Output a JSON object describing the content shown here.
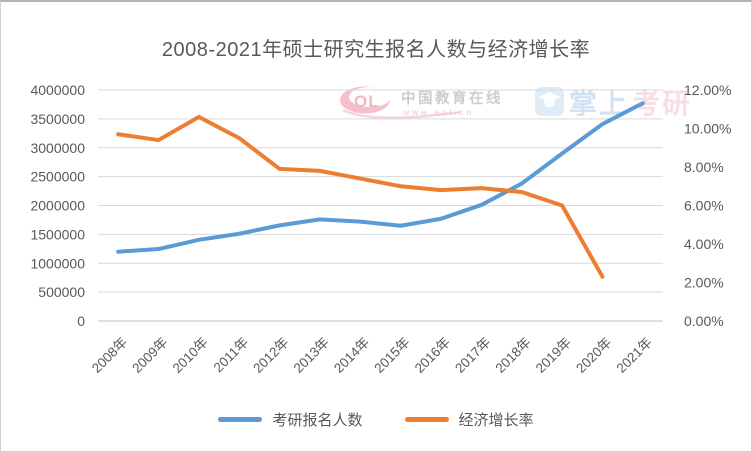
{
  "watermarks": {
    "eol": {
      "logo_text": "OL",
      "site_name": "中国教育在线",
      "site_url": "www.eol.cn"
    },
    "zhangshang": {
      "text_blue": "掌上",
      "text_red": "考研"
    }
  },
  "chart_data": {
    "type": "line",
    "title": "2008-2021年硕士研究生报名人数与经济增长率",
    "categories": [
      "2008年",
      "2009年",
      "2010年",
      "2011年",
      "2012年",
      "2013年",
      "2014年",
      "2015年",
      "2016年",
      "2017年",
      "2018年",
      "2019年",
      "2020年",
      "2021年"
    ],
    "series": [
      {
        "name": "考研报名人数",
        "axis": "left",
        "color": "#5B9BD5",
        "values": [
          1200000,
          1246000,
          1406000,
          1511000,
          1656000,
          1760000,
          1720000,
          1649000,
          1770000,
          2010000,
          2380000,
          2900000,
          3410000,
          3770000
        ]
      },
      {
        "name": "经济增长率",
        "axis": "right",
        "color": "#ED7D31",
        "values": [
          9.7,
          9.4,
          10.6,
          9.5,
          7.9,
          7.8,
          7.4,
          7.0,
          6.8,
          6.9,
          6.7,
          6.0,
          2.3,
          null
        ]
      }
    ],
    "left_axis": {
      "min": 0,
      "max": 4000000,
      "step": 500000,
      "tick_labels": [
        "4000000",
        "3500000",
        "3000000",
        "2500000",
        "2000000",
        "1500000",
        "1000000",
        "500000",
        "0"
      ]
    },
    "right_axis": {
      "min": 0,
      "max": 12,
      "step": 2,
      "tick_labels": [
        "12.00%",
        "10.00%",
        "8.00%",
        "6.00%",
        "4.00%",
        "2.00%",
        "0.00%"
      ]
    },
    "grid": true,
    "legend_position": "bottom"
  },
  "colors": {
    "gridline": "#D9D9D9",
    "axis_line": "#BFBFBF",
    "axis_text": "#595959",
    "title_text": "#595959"
  }
}
